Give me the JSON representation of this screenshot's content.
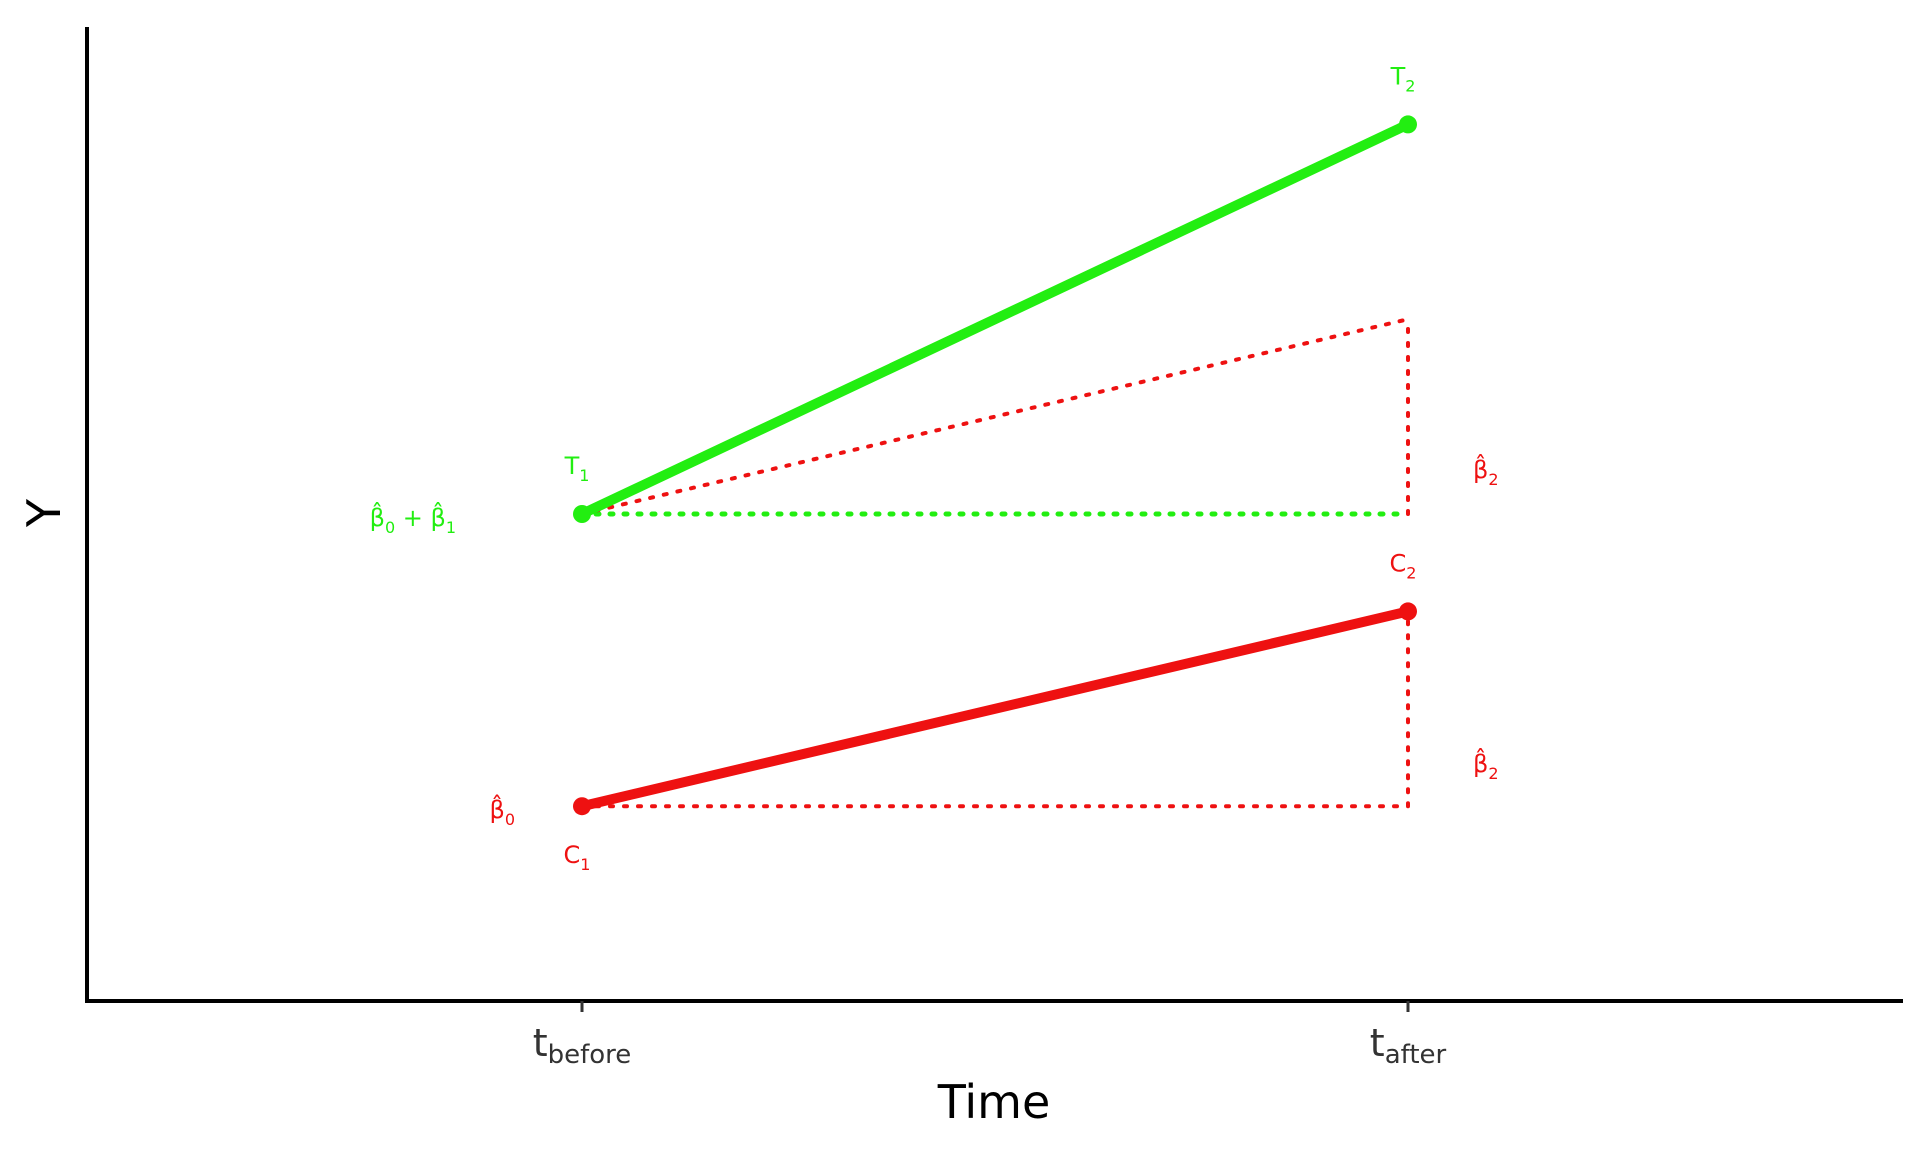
{
  "chart_data": {
    "type": "line",
    "xlabel": "Time",
    "ylabel": "Y",
    "categories": [
      "before",
      "after"
    ],
    "x_tick_labels": [
      {
        "base": "t",
        "sub": "before"
      },
      {
        "base": "t",
        "sub": "after"
      }
    ],
    "ylim": [
      0,
      10
    ],
    "grid": false,
    "series": [
      {
        "name": "T",
        "color": "#22ee11",
        "values": [
          5,
          9
        ],
        "point_labels": [
          {
            "base": "T",
            "sub": "1"
          },
          {
            "base": "T",
            "sub": "2"
          }
        ]
      },
      {
        "name": "C",
        "color": "#ee1111",
        "values": [
          2,
          4
        ],
        "point_labels": [
          {
            "base": "C",
            "sub": "1"
          },
          {
            "base": "C",
            "sub": "2"
          }
        ]
      }
    ],
    "counterfactual": {
      "color": "#ee1111",
      "from": {
        "x": "before",
        "y": 5
      },
      "to": {
        "x": "after",
        "y": 7
      }
    },
    "annotations": [
      {
        "id": "b0",
        "text": "β̂",
        "sub": "0",
        "color": "#ee1111",
        "at_y": 2,
        "at_x": "before",
        "side": "left"
      },
      {
        "id": "b0b1",
        "text": "β̂",
        "sub": "0",
        "text2": " + β̂",
        "sub2": "1",
        "color": "#22ee11",
        "at_y": 5,
        "at_x": "before",
        "side": "left"
      },
      {
        "id": "b2-top",
        "text": "β̂",
        "sub": "2",
        "color": "#ee1111",
        "at_y": 6,
        "at_x": "after",
        "side": "right"
      },
      {
        "id": "b2-bottom",
        "text": "β̂",
        "sub": "2",
        "color": "#ee1111",
        "at_y": 3,
        "at_x": "after",
        "side": "right"
      }
    ]
  }
}
